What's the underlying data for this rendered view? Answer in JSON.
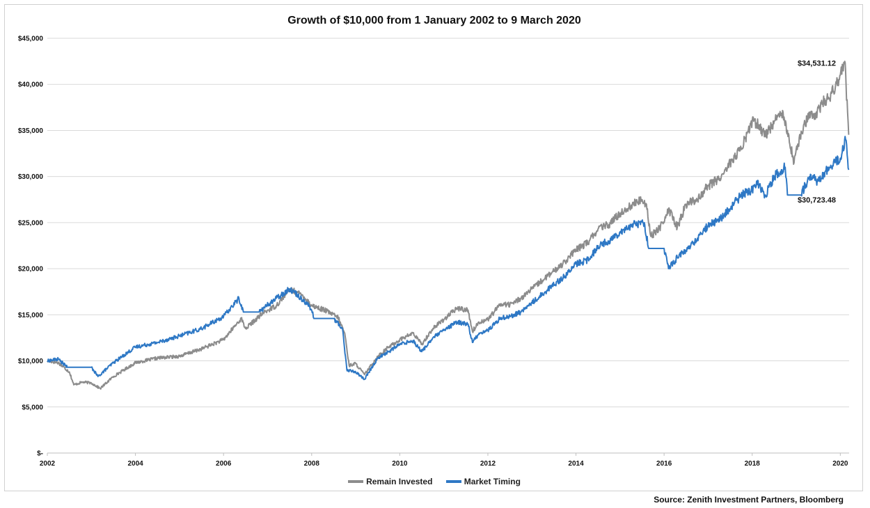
{
  "chart_data": {
    "type": "line",
    "title": "Growth of $10,000 from 1 January 2002 to 9 March 2020",
    "xlabel": "",
    "ylabel": "",
    "x_ticks": [
      "2002",
      "2004",
      "2006",
      "2008",
      "2010",
      "2012",
      "2014",
      "2016",
      "2018",
      "2020"
    ],
    "y_ticks": [
      "$-",
      "$5,000",
      "$10,000",
      "$15,000",
      "$20,000",
      "$25,000",
      "$30,000",
      "$35,000",
      "$40,000",
      "$45,000"
    ],
    "xlim": [
      2002.0,
      2020.2
    ],
    "ylim": [
      0,
      45000
    ],
    "grid": "horizontal",
    "legend_position": "bottom",
    "series": [
      {
        "name": "Remain Invested",
        "color": "#8c8c8c",
        "x": [
          2002.0,
          2002.25,
          2002.5,
          2002.6,
          2002.8,
          2003.0,
          2003.2,
          2003.5,
          2004.0,
          2004.5,
          2005.0,
          2005.5,
          2006.0,
          2006.4,
          2006.5,
          2006.9,
          2007.2,
          2007.5,
          2007.8,
          2008.0,
          2008.3,
          2008.6,
          2008.75,
          2008.85,
          2009.0,
          2009.2,
          2009.5,
          2009.75,
          2010.0,
          2010.3,
          2010.5,
          2010.75,
          2011.0,
          2011.3,
          2011.55,
          2011.65,
          2011.8,
          2012.0,
          2012.3,
          2012.5,
          2012.75,
          2013.0,
          2013.3,
          2013.5,
          2013.75,
          2014.0,
          2014.3,
          2014.5,
          2014.75,
          2015.0,
          2015.3,
          2015.5,
          2015.6,
          2015.7,
          2016.0,
          2016.1,
          2016.3,
          2016.5,
          2016.75,
          2017.0,
          2017.3,
          2017.5,
          2017.75,
          2018.0,
          2018.1,
          2018.3,
          2018.5,
          2018.7,
          2018.8,
          2018.95,
          2019.0,
          2019.3,
          2019.4,
          2019.6,
          2019.75,
          2020.0,
          2020.1,
          2020.13,
          2020.19
        ],
        "values": [
          10000,
          9800,
          8800,
          7400,
          7700,
          7600,
          7000,
          8300,
          9800,
          10300,
          10500,
          11300,
          12300,
          14600,
          13500,
          15200,
          16000,
          17800,
          17100,
          16000,
          15500,
          14700,
          13000,
          9500,
          9700,
          8500,
          10500,
          11500,
          12300,
          13000,
          11800,
          13500,
          14500,
          15700,
          15500,
          13200,
          14200,
          14500,
          16200,
          16100,
          16800,
          17800,
          19000,
          19700,
          20800,
          22000,
          23000,
          24300,
          24800,
          26000,
          27000,
          27500,
          27000,
          23500,
          25000,
          26500,
          24500,
          27000,
          27500,
          29000,
          30000,
          31500,
          33000,
          36000,
          35800,
          34500,
          36000,
          37000,
          35000,
          31500,
          33000,
          37000,
          36500,
          38000,
          38500,
          41000,
          42500,
          40000,
          34531.12
        ]
      },
      {
        "name": "Market Timing",
        "color": "#2e78c5",
        "x": [
          2002.0,
          2002.25,
          2002.45,
          2002.7,
          2003.0,
          2003.15,
          2003.5,
          2004.0,
          2004.5,
          2005.0,
          2005.5,
          2006.0,
          2006.35,
          2006.45,
          2006.8,
          2007.2,
          2007.5,
          2007.6,
          2007.9,
          2008.0,
          2008.05,
          2008.5,
          2008.7,
          2008.8,
          2009.0,
          2009.2,
          2009.5,
          2009.75,
          2010.0,
          2010.3,
          2010.5,
          2010.75,
          2011.0,
          2011.3,
          2011.55,
          2011.65,
          2011.8,
          2012.0,
          2012.3,
          2012.5,
          2012.75,
          2013.0,
          2013.3,
          2013.5,
          2013.75,
          2014.0,
          2014.3,
          2014.5,
          2014.75,
          2015.0,
          2015.3,
          2015.55,
          2015.65,
          2016.0,
          2016.1,
          2016.3,
          2016.5,
          2016.75,
          2017.0,
          2017.3,
          2017.5,
          2017.75,
          2018.0,
          2018.1,
          2018.3,
          2018.5,
          2018.75,
          2018.8,
          2019.1,
          2019.3,
          2019.5,
          2019.75,
          2020.0,
          2020.12,
          2020.19
        ],
        "values": [
          10000,
          10200,
          9300,
          9300,
          9300,
          8300,
          9800,
          11500,
          12000,
          12700,
          13500,
          14800,
          16800,
          15300,
          15300,
          16800,
          17800,
          17500,
          16200,
          15500,
          14600,
          14600,
          13500,
          9000,
          8800,
          8000,
          10300,
          11000,
          11800,
          12200,
          11000,
          12500,
          13300,
          14200,
          14000,
          12000,
          13000,
          13300,
          14700,
          14800,
          15300,
          16300,
          17500,
          18300,
          19200,
          20500,
          21000,
          22500,
          23000,
          24000,
          24800,
          25000,
          22200,
          22200,
          20000,
          21200,
          22000,
          23200,
          24700,
          25500,
          26500,
          28000,
          28500,
          29500,
          28000,
          30000,
          31000,
          28000,
          28000,
          30000,
          29500,
          31000,
          32000,
          34000,
          30723.48
        ]
      }
    ],
    "annotations": [
      {
        "text": "$34,531.12",
        "x": 2019.9,
        "y": 42000,
        "series": "Remain Invested"
      },
      {
        "text": "$30,723.48",
        "x": 2019.9,
        "y": 27200,
        "series": "Market Timing"
      }
    ],
    "source": "Source: Zenith Investment Partners, Bloomberg"
  }
}
